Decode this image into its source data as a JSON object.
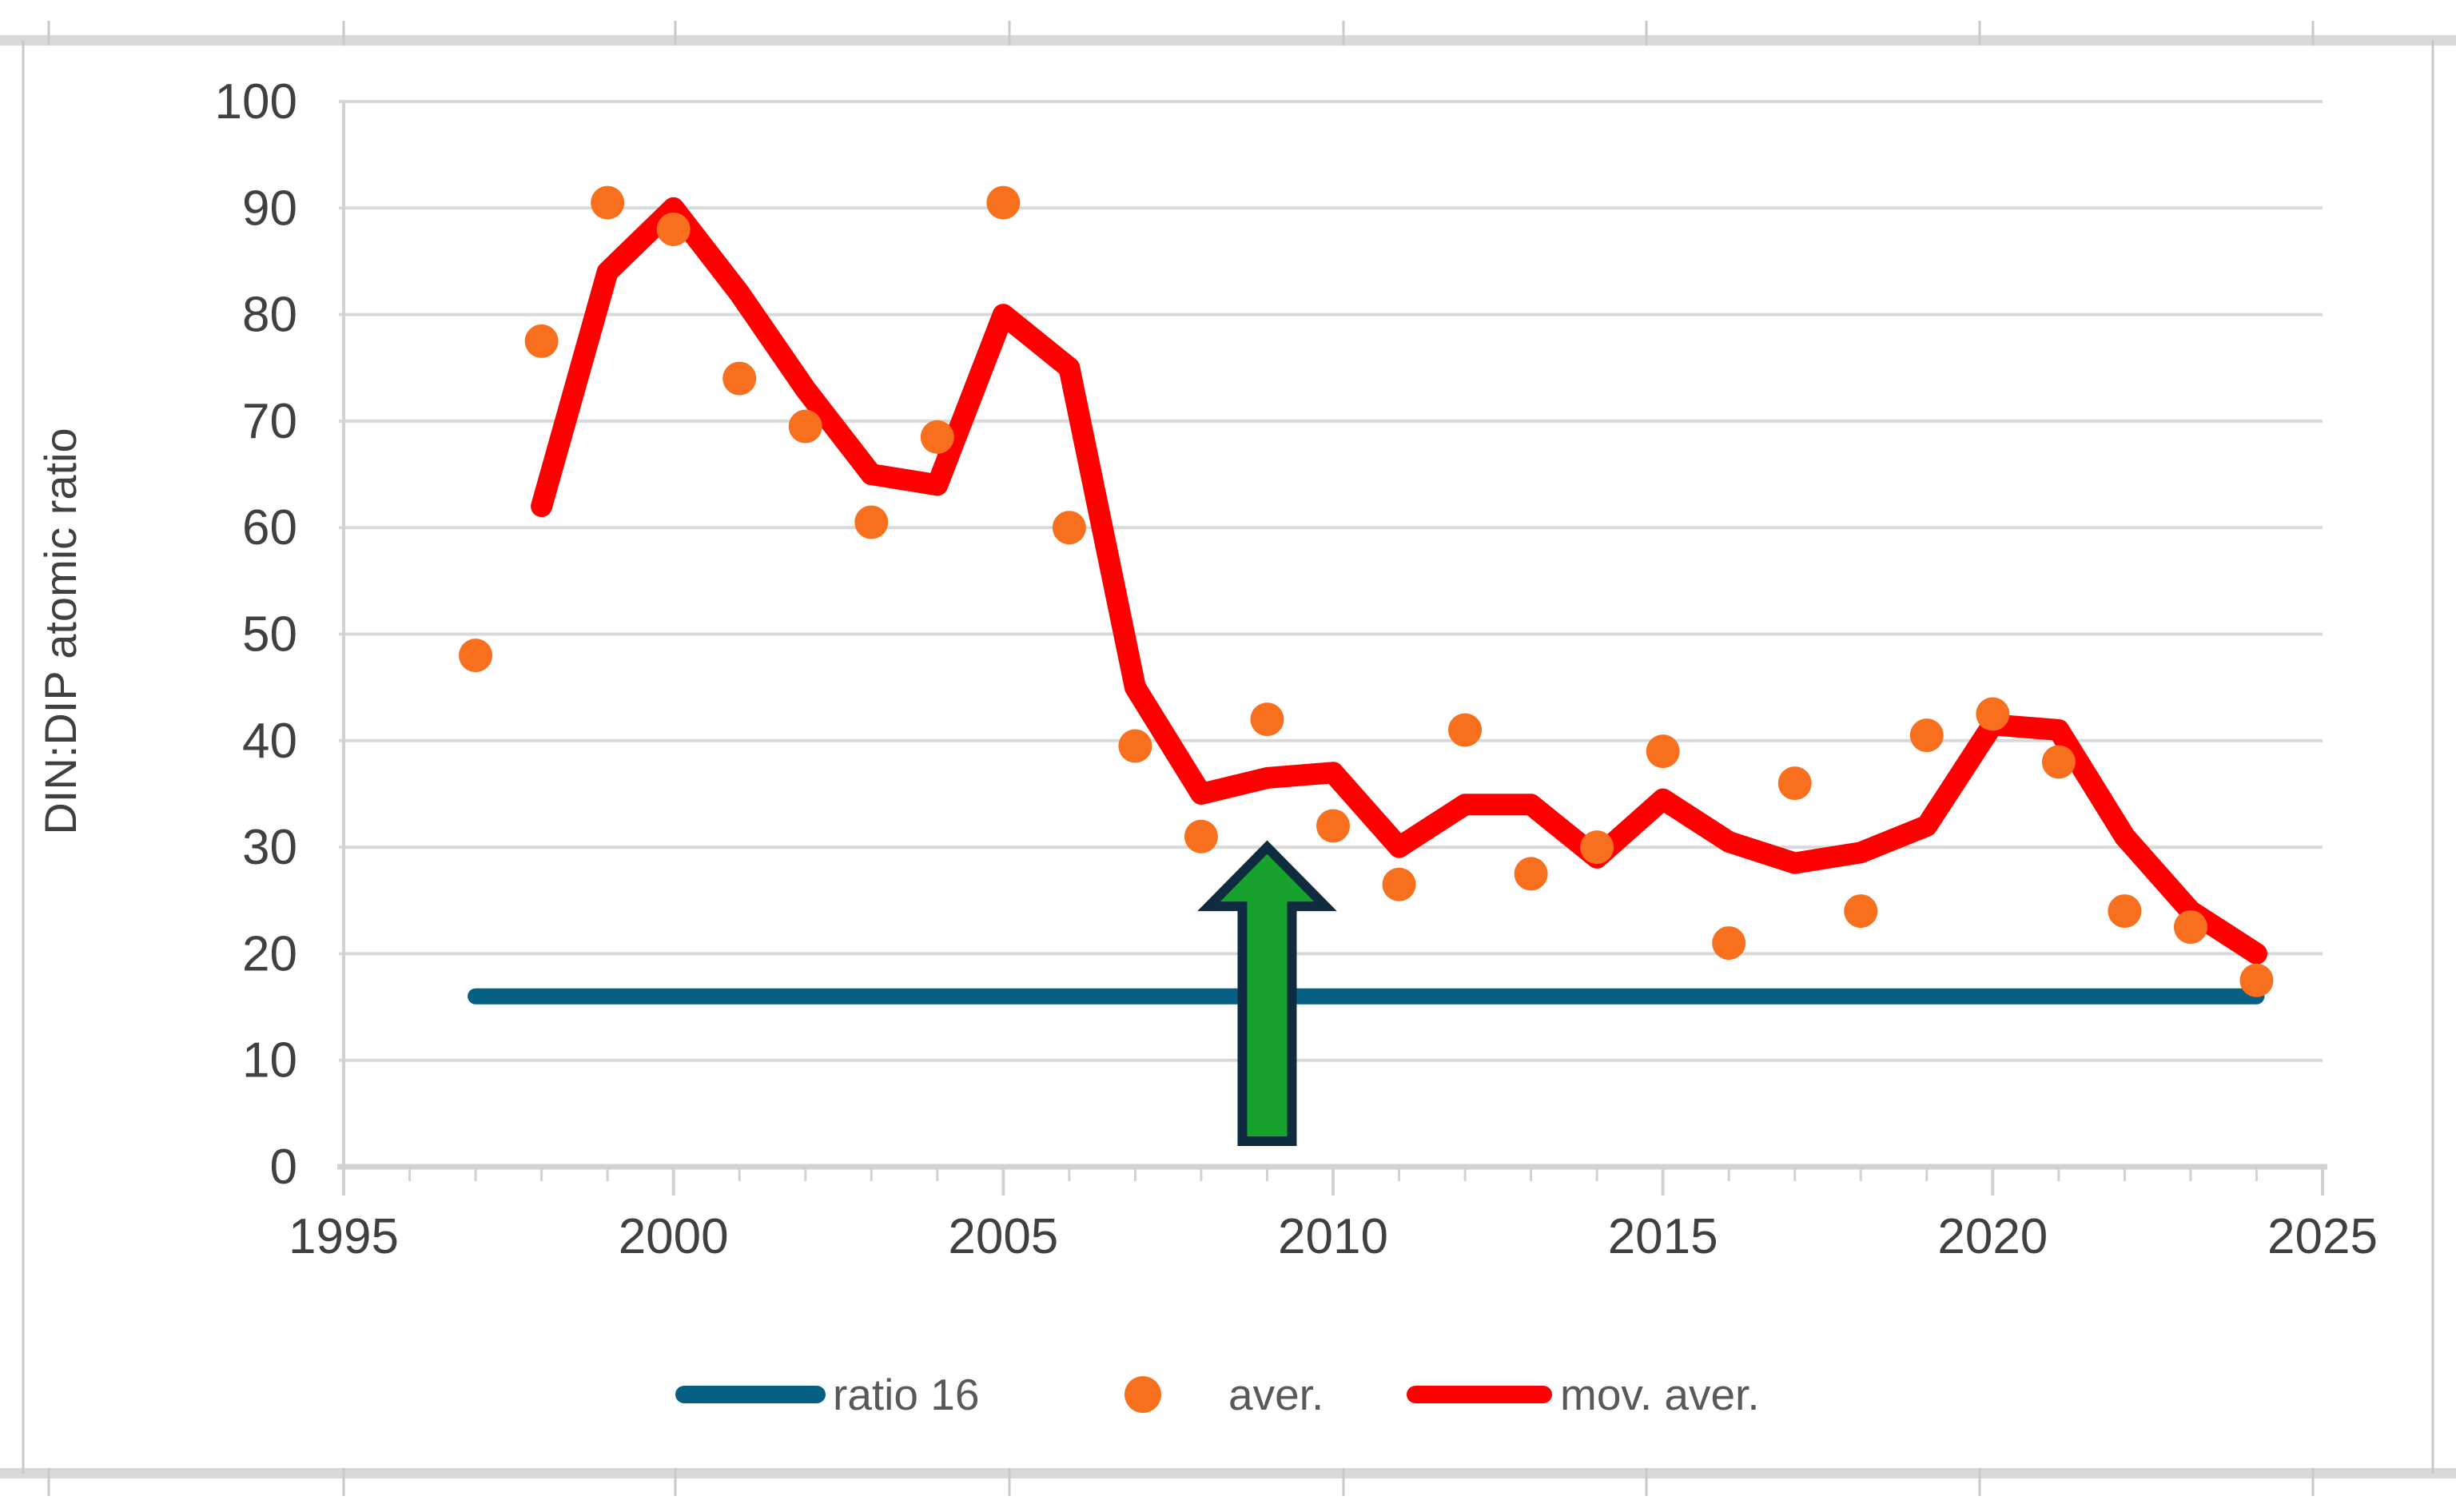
{
  "chart_data": {
    "type": "scatter",
    "title": "",
    "xlabel": "",
    "ylabel": "DIN:DIP atomic ratio",
    "xlim": [
      1995,
      2025
    ],
    "ylim": [
      0,
      100
    ],
    "x_ticks": [
      1995,
      2000,
      2005,
      2010,
      2015,
      2020,
      2025
    ],
    "y_ticks": [
      0,
      10,
      20,
      30,
      40,
      50,
      60,
      70,
      80,
      90,
      100
    ],
    "grid": "horizontal",
    "legend_position": "bottom",
    "series": [
      {
        "name": "ratio 16",
        "type": "line",
        "color": "#056083",
        "x": [
          1997,
          2024
        ],
        "values": [
          16,
          16
        ]
      },
      {
        "name": "aver.",
        "type": "scatter",
        "color": "#F8701E",
        "x": [
          1997,
          1998,
          1999,
          2000,
          2001,
          2002,
          2003,
          2004,
          2005,
          2006,
          2007,
          2008,
          2009,
          2010,
          2011,
          2012,
          2013,
          2014,
          2015,
          2016,
          2017,
          2018,
          2019,
          2020,
          2021,
          2022,
          2023,
          2024
        ],
        "values": [
          48,
          77.5,
          90.5,
          88,
          74,
          69.5,
          60.5,
          68.5,
          90.5,
          60,
          39.5,
          31,
          42,
          32,
          26.5,
          41,
          27.5,
          30,
          39,
          21,
          36,
          24,
          40.5,
          42.5,
          38,
          24,
          22.5,
          17.5
        ]
      },
      {
        "name": "mov. aver.",
        "type": "line",
        "color": "#FF0000",
        "x": [
          1998,
          1999,
          2000,
          2001,
          2002,
          2003,
          2004,
          2005,
          2006,
          2007,
          2008,
          2009,
          2010,
          2011,
          2012,
          2013,
          2014,
          2015,
          2016,
          2017,
          2018,
          2019,
          2020,
          2021,
          2022,
          2023,
          2024
        ],
        "values": [
          62,
          84,
          90,
          82,
          73,
          65,
          64,
          80,
          75,
          45,
          35,
          36.5,
          37,
          30,
          34,
          34,
          29,
          34.5,
          30.5,
          28.5,
          29.5,
          32,
          41.5,
          41,
          31,
          24,
          20
        ]
      }
    ],
    "annotations": [
      {
        "type": "up-arrow",
        "x": 2009,
        "y_base": 2.4,
        "y_tip": 30,
        "fill": "#17A22E",
        "outline": "#0E2B3F"
      }
    ]
  },
  "colors": {
    "gridline": "#D9D9D9",
    "axis_line": "#D2D2D2",
    "frame": "#C9C9C9",
    "axis_text": "#404040",
    "legend_text": "#595959"
  }
}
